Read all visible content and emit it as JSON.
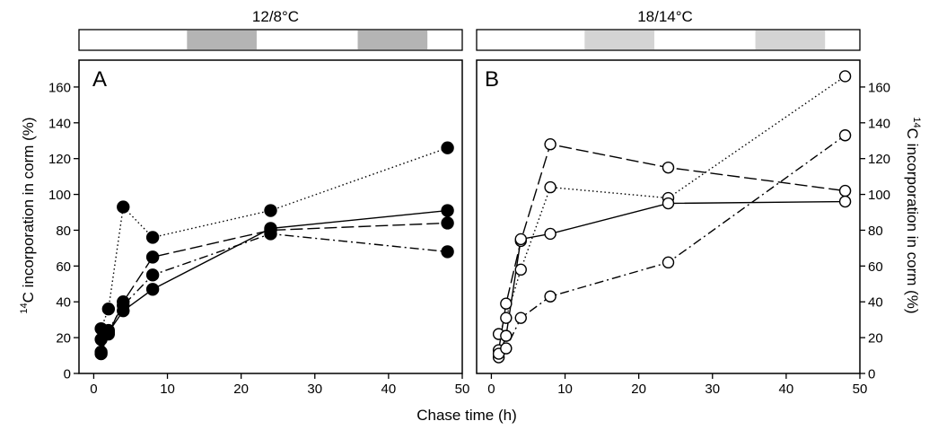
{
  "shared": {
    "xlabel": "Chase time (h)"
  },
  "chart_data": [
    {
      "type": "line",
      "panel_label": "A",
      "condition_label": "12/8°C",
      "ylabel": "14C incorporation in corm (%)",
      "ylabel_sup": "14",
      "ylabel_main": "C incorporation in corm (%)",
      "xlim": [
        -2,
        50
      ],
      "ylim": [
        0,
        175
      ],
      "xticks": [
        "0",
        "10",
        "20",
        "30",
        "40",
        "50"
      ],
      "yticks": [
        "0",
        "20",
        "40",
        "60",
        "80",
        "100",
        "120",
        "140",
        "160"
      ],
      "ytick_values": [
        0,
        20,
        40,
        60,
        80,
        100,
        120,
        140,
        160
      ],
      "xtick_values": [
        0,
        10,
        20,
        30,
        40,
        50
      ],
      "y_axis_side": "left",
      "marker": "filled-circle",
      "photoperiod_bar": {
        "dark_intervals": [
          [
            11,
            21
          ],
          [
            35.5,
            45.5
          ]
        ],
        "dark_color": "#b4b4b4",
        "range": [
          -4.5,
          50.5
        ]
      },
      "series": [
        {
          "style": "dotted",
          "x": [
            1,
            2,
            4,
            8,
            24,
            48
          ],
          "y": [
            25,
            36,
            93,
            76,
            91,
            126
          ]
        },
        {
          "style": "dashed",
          "x": [
            1,
            2,
            4,
            8,
            24,
            48
          ],
          "y": [
            19,
            22,
            40,
            65,
            80,
            84
          ]
        },
        {
          "style": "solid",
          "x": [
            1,
            2,
            4,
            8,
            24,
            48
          ],
          "y": [
            11,
            23,
            35,
            47,
            81,
            91
          ]
        },
        {
          "style": "dash-dot",
          "x": [
            1,
            2,
            4,
            8,
            24,
            48
          ],
          "y": [
            12,
            24,
            38,
            55,
            78,
            68
          ]
        }
      ]
    },
    {
      "type": "line",
      "panel_label": "B",
      "condition_label": "18/14°C",
      "ylabel": "14C incorporation in corm (%)",
      "ylabel_sup": "14",
      "ylabel_main": "C incorporation in corm (%)",
      "xlim": [
        -2,
        50
      ],
      "ylim": [
        0,
        175
      ],
      "xticks": [
        "0",
        "10",
        "20",
        "30",
        "40",
        "50"
      ],
      "yticks": [
        "0",
        "20",
        "40",
        "60",
        "80",
        "100",
        "120",
        "140",
        "160"
      ],
      "ytick_values": [
        0,
        20,
        40,
        60,
        80,
        100,
        120,
        140,
        160
      ],
      "xtick_values": [
        0,
        10,
        20,
        30,
        40,
        50
      ],
      "y_axis_side": "right",
      "marker": "open-circle",
      "photoperiod_bar": {
        "dark_intervals": [
          [
            11,
            21
          ],
          [
            35.5,
            45.5
          ]
        ],
        "dark_color": "#d4d4d4",
        "range": [
          -4.5,
          50.5
        ]
      },
      "series": [
        {
          "style": "dotted",
          "x": [
            1,
            2,
            4,
            8,
            24,
            48
          ],
          "y": [
            22,
            31,
            58,
            104,
            98,
            166
          ]
        },
        {
          "style": "dashed",
          "x": [
            1,
            2,
            4,
            8,
            24,
            48
          ],
          "y": [
            13,
            39,
            74,
            128,
            115,
            102
          ]
        },
        {
          "style": "solid",
          "x": [
            1,
            2,
            4,
            8,
            24,
            48
          ],
          "y": [
            9,
            21,
            75,
            78,
            95,
            96
          ]
        },
        {
          "style": "dash-dot",
          "x": [
            1,
            2,
            4,
            8,
            24,
            48
          ],
          "y": [
            11,
            14,
            31,
            43,
            62,
            133
          ]
        }
      ]
    }
  ]
}
